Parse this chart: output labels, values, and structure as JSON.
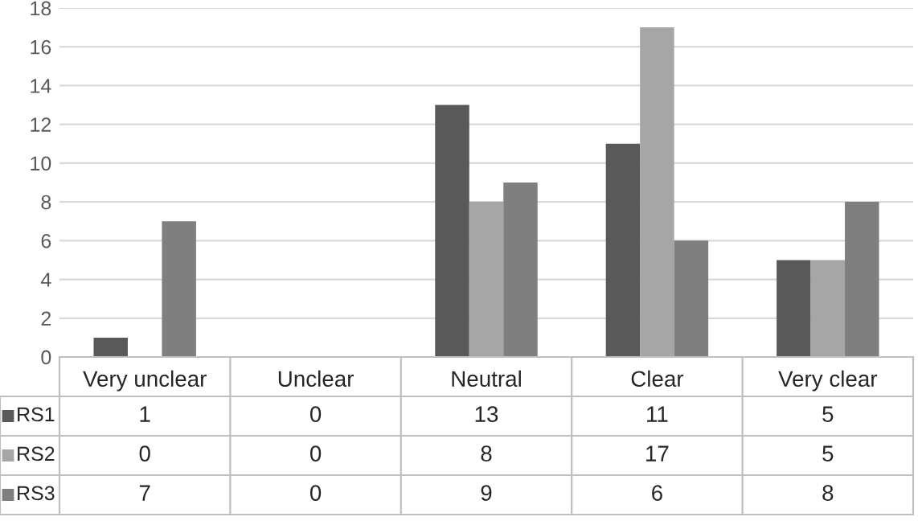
{
  "chart_data": {
    "type": "bar",
    "categories": [
      "Very unclear",
      "Unclear",
      "Neutral",
      "Clear",
      "Very clear"
    ],
    "series": [
      {
        "name": "RS1",
        "color": "#595959",
        "values": [
          1,
          0,
          13,
          11,
          5
        ]
      },
      {
        "name": "RS2",
        "color": "#a6a6a6",
        "values": [
          0,
          0,
          8,
          17,
          5
        ]
      },
      {
        "name": "RS3",
        "color": "#7f7f7f",
        "values": [
          7,
          0,
          9,
          6,
          8
        ]
      }
    ],
    "ylim": [
      0,
      18
    ],
    "yticks": [
      0,
      2,
      4,
      6,
      8,
      10,
      12,
      14,
      16,
      18
    ],
    "grid": "y",
    "data_labels": true,
    "legend": "bottom left"
  }
}
